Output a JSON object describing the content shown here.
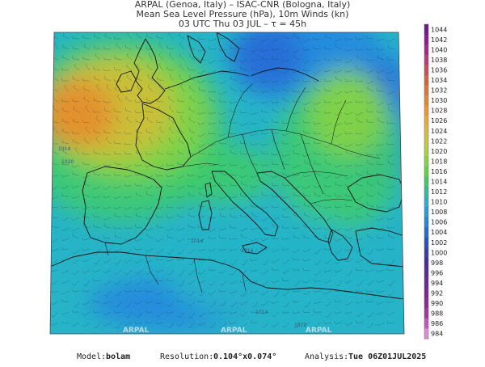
{
  "header": {
    "line1": "ARPAL (Genoa, Italy)  –  ISAC-CNR (Bologna, Italy)",
    "line2": "Mean Sea Level Pressure (hPa), 10m Winds (kn)",
    "line3": "03 UTC Thu 03 JUL  –  τ = 45h"
  },
  "legend": {
    "levels": [
      {
        "label": "1044",
        "color": "#6a1a8a"
      },
      {
        "label": "1042",
        "color": "#8b1e8c"
      },
      {
        "label": "1040",
        "color": "#a7288a"
      },
      {
        "label": "1038",
        "color": "#be3a78"
      },
      {
        "label": "1036",
        "color": "#cf4c5c"
      },
      {
        "label": "1034",
        "color": "#dc5f3e"
      },
      {
        "label": "1032",
        "color": "#e47433"
      },
      {
        "label": "1030",
        "color": "#e8882e"
      },
      {
        "label": "1028",
        "color": "#e99a2e"
      },
      {
        "label": "1026",
        "color": "#e3ad33"
      },
      {
        "label": "1024",
        "color": "#d6bc37"
      },
      {
        "label": "1022",
        "color": "#c6c93a"
      },
      {
        "label": "1020",
        "color": "#aed23c"
      },
      {
        "label": "1018",
        "color": "#8cd43f"
      },
      {
        "label": "1016",
        "color": "#62d249"
      },
      {
        "label": "1014",
        "color": "#3ecb6a"
      },
      {
        "label": "1012",
        "color": "#2bc29a"
      },
      {
        "label": "1010",
        "color": "#27b4c8"
      },
      {
        "label": "1008",
        "color": "#259fdc"
      },
      {
        "label": "1006",
        "color": "#2585e0"
      },
      {
        "label": "1004",
        "color": "#276ad6"
      },
      {
        "label": "1002",
        "color": "#2b52c3"
      },
      {
        "label": "1000",
        "color": "#3a3eae"
      },
      {
        "label": "998",
        "color": "#4a2d9d"
      },
      {
        "label": "996",
        "color": "#5a2a96"
      },
      {
        "label": "994",
        "color": "#6a2a92"
      },
      {
        "label": "992",
        "color": "#7a2a8e"
      },
      {
        "label": "990",
        "color": "#8a2c8e"
      },
      {
        "label": "988",
        "color": "#a23a9e"
      },
      {
        "label": "986",
        "color": "#c05ab6"
      },
      {
        "label": "984",
        "color": "#dc8cd2"
      }
    ]
  },
  "map": {
    "colors": {
      "high": "#e8882e",
      "mid_high": "#d6bc37",
      "mid": "#8cd43f",
      "green": "#3ecb6a",
      "cyan": "#27b4c8",
      "blue": "#2585e0",
      "deep_blue": "#276ad6",
      "coast": "#111111"
    },
    "watermark": "ARPAL",
    "isobar_labels": [
      "1014",
      "1020",
      "1014",
      "1014",
      "1012",
      "1014"
    ]
  },
  "footer": {
    "model_label": "Model:",
    "model_value": "bolam",
    "resolution_label": "Resolution:",
    "resolution_value": "0.104°x0.074°",
    "analysis_label": "Analysis:",
    "analysis_value": "Tue 06Z01JUL2025"
  }
}
